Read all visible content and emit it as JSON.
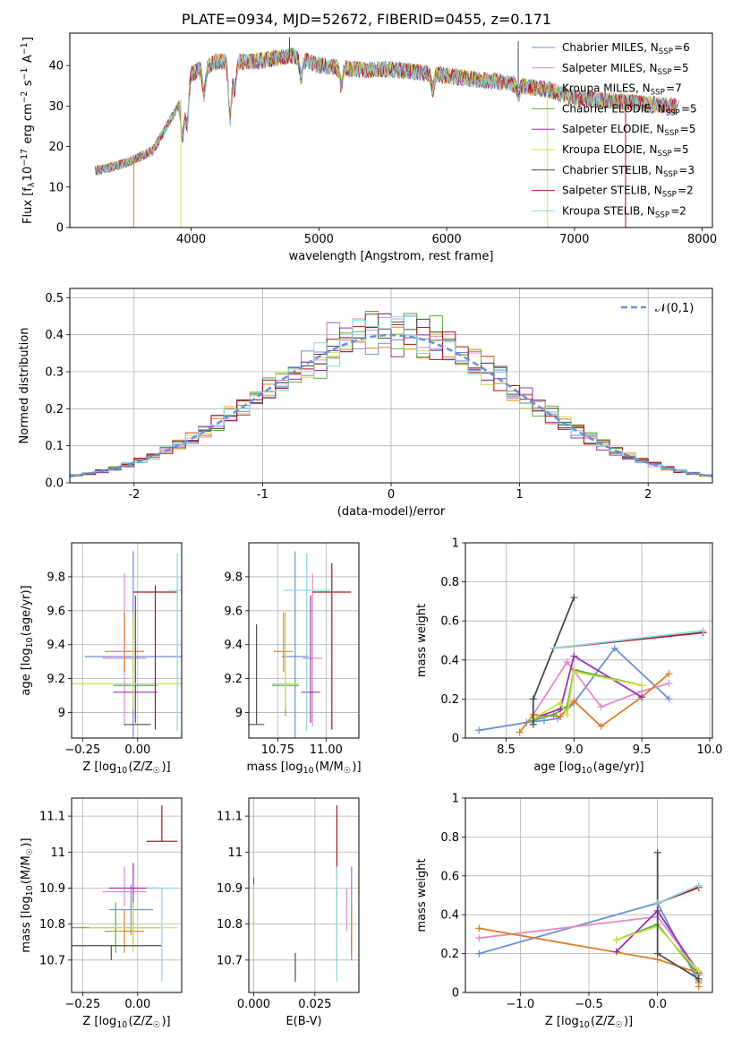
{
  "figure": {
    "title": "PLATE=0934, MJD=52672, FIBERID=0455, z=0.171"
  },
  "series_styles": [
    {
      "label": "Chabrier MILES, N<sub>SSP</sub>=6",
      "color": "#6a8fdc"
    },
    {
      "label": "Salpeter MILES, N<sub>SSP</sub>=5",
      "color": "#e389c8"
    },
    {
      "label": "Kroupa MILES, N<sub>SSP</sub>=7",
      "color": "#e07c22"
    },
    {
      "label": "Chabrier ELODIE, N<sub>SSP</sub>=5",
      "color": "#5cae3f"
    },
    {
      "label": "Salpeter ELODIE, N<sub>SSP</sub>=5",
      "color": "#9a30b4"
    },
    {
      "label": "Kroupa ELODIE, N<sub>SSP</sub>=5",
      "color": "#cde045"
    },
    {
      "label": "Chabrier STELIB, N<sub>SSP</sub>=3",
      "color": "#4c4c4c"
    },
    {
      "label": "Salpeter STELIB, N<sub>SSP</sub>=2",
      "color": "#b0141e"
    },
    {
      "label": "Kroupa STELIB, N<sub>SSP</sub>=2",
      "color": "#86d6e4"
    }
  ],
  "chart_data": [
    {
      "id": "spectrum",
      "type": "line",
      "xlabel": "wavelength [Angstrom, rest frame]",
      "ylabel": "Flux [f<sub>λ</sub>10<sup>−17</sup> erg cm<sup>−2</sup> s<sup>−1</sup> A<sup>−1</sup>]",
      "xlim": [
        3050,
        8080
      ],
      "ylim": [
        0,
        48
      ],
      "xticks": [
        4000,
        5000,
        6000,
        7000,
        8000
      ],
      "yticks": [
        0,
        10,
        20,
        30,
        40
      ],
      "grid": false,
      "legend": "right",
      "spectrum_continuum": [
        [
          3250,
          14
        ],
        [
          3500,
          16
        ],
        [
          3700,
          19
        ],
        [
          3900,
          30
        ],
        [
          4000,
          38
        ],
        [
          4200,
          41
        ],
        [
          4500,
          41
        ],
        [
          4800,
          42.5
        ],
        [
          5000,
          40
        ],
        [
          5300,
          39
        ],
        [
          5600,
          39
        ],
        [
          6000,
          37.5
        ],
        [
          6400,
          36
        ],
        [
          6800,
          34
        ],
        [
          7000,
          32
        ],
        [
          7400,
          31
        ],
        [
          7800,
          30
        ]
      ],
      "absorption_dips": [
        [
          3933,
          23
        ],
        [
          3968,
          25
        ],
        [
          4101,
          33
        ],
        [
          4304,
          27
        ],
        [
          4340,
          34
        ],
        [
          4861,
          37
        ],
        [
          5175,
          35
        ],
        [
          5890,
          34
        ],
        [
          6563,
          33
        ]
      ],
      "spikes": [
        [
          3550,
          0,
          "#e07c22"
        ],
        [
          3920,
          0,
          "#cde045"
        ],
        [
          6790,
          0,
          "#cde045"
        ],
        [
          7400,
          0,
          "#b0141e"
        ],
        [
          4770,
          47,
          "#4c4c4c"
        ],
        [
          6560,
          46,
          "#4c4c4c"
        ]
      ]
    },
    {
      "id": "residuals",
      "type": "histogram",
      "xlabel": "(data-model)/error",
      "ylabel": "Normed distribution",
      "xlim": [
        -2.5,
        2.5
      ],
      "ylim": [
        0,
        0.525
      ],
      "xticks": [
        -2,
        -1,
        0,
        1,
        2
      ],
      "yticks": [
        0.0,
        0.1,
        0.2,
        0.3,
        0.4,
        0.5
      ],
      "grid": true,
      "legend": "top-right",
      "legend_label": "𝒩(0,1)",
      "reference_curve": {
        "name": "𝒩(0,1)",
        "color": "#6a8fdc",
        "mean": 0,
        "sigma": 1
      }
    },
    {
      "id": "age_vs_Z",
      "type": "errorbar",
      "xlabel": "Z [log<sub>10</sub>(Z/Z<sub>☉</sub>)]",
      "ylabel": "age  [log<sub>10</sub>(age/yr)]",
      "xlim": [
        -0.3,
        0.2
      ],
      "ylim": [
        8.85,
        10.0
      ],
      "xticks": [
        -0.25,
        0.0
      ],
      "xticklabels": [
        "−0.25",
        "0.00"
      ],
      "yticks": [
        9.0,
        9.2,
        9.4,
        9.6,
        9.8
      ],
      "grid": true,
      "points": [
        {
          "x": -0.02,
          "y": 9.33,
          "xerr": 0.22,
          "yerr": [
            0.62,
            0.62
          ]
        },
        {
          "x": -0.06,
          "y": 9.32,
          "xerr": 0.1,
          "yerr": [
            0.4,
            0.5
          ]
        },
        {
          "x": -0.06,
          "y": 9.36,
          "xerr": 0.09,
          "yerr": [
            0.12,
            0.23
          ]
        },
        {
          "x": -0.01,
          "y": 9.16,
          "xerr": 0.1,
          "yerr": [
            0.18,
            0.43
          ]
        },
        {
          "x": -0.01,
          "y": 9.12,
          "xerr": 0.1,
          "yerr": [
            0.18,
            0.57
          ]
        },
        {
          "x": -0.02,
          "y": 9.17,
          "xerr": 0.3,
          "yerr": [
            0.15,
            0.42
          ]
        },
        {
          "x": 0.0,
          "y": 8.93,
          "xerr": 0.06,
          "yerr": [
            0.0,
            0.0
          ]
        },
        {
          "x": 0.08,
          "y": 9.71,
          "xerr": 0.1,
          "yerr": [
            0.81,
            0.04
          ]
        },
        {
          "x": 0.18,
          "y": 9.72,
          "xerr": 0.04,
          "yerr": [
            0.83,
            0.22
          ]
        }
      ]
    },
    {
      "id": "age_vs_mass",
      "type": "errorbar",
      "xlabel": "mass [log<sub>10</sub>(M/M<sub>☉</sub>)]",
      "ylabel": "",
      "xlim": [
        10.6,
        11.17
      ],
      "ylim": [
        8.85,
        10.0
      ],
      "xticks": [
        10.75,
        11.0
      ],
      "xticklabels": [
        "10.75",
        "11.00"
      ],
      "yticks": [
        9.0,
        9.2,
        9.4,
        9.6,
        9.8
      ],
      "grid": true,
      "points": [
        {
          "x": 10.84,
          "y": 9.33,
          "xerr": 0.07,
          "yerr": [
            0.62,
            0.62
          ]
        },
        {
          "x": 10.93,
          "y": 9.32,
          "xerr": 0.05,
          "yerr": [
            0.4,
            0.5
          ]
        },
        {
          "x": 10.78,
          "y": 9.36,
          "xerr": 0.05,
          "yerr": [
            0.12,
            0.23
          ]
        },
        {
          "x": 10.79,
          "y": 9.16,
          "xerr": 0.07,
          "yerr": [
            0.18,
            0.43
          ]
        },
        {
          "x": 10.92,
          "y": 9.12,
          "xerr": 0.05,
          "yerr": [
            0.18,
            0.57
          ]
        },
        {
          "x": 10.79,
          "y": 9.17,
          "xerr": 0.07,
          "yerr": [
            0.15,
            0.42
          ]
        },
        {
          "x": 10.64,
          "y": 8.93,
          "xerr": 0.04,
          "yerr": [
            0.0,
            0.59
          ]
        },
        {
          "x": 11.03,
          "y": 9.71,
          "xerr": 0.1,
          "yerr": [
            0.81,
            0.17
          ]
        },
        {
          "x": 10.9,
          "y": 9.72,
          "xerr": 0.12,
          "yerr": [
            0.83,
            0.22
          ]
        }
      ]
    },
    {
      "id": "weight_vs_age",
      "type": "line",
      "xlabel": "age  [log<sub>10</sub>(age/yr)]",
      "ylabel": "mass weight",
      "xlim": [
        8.2,
        10.02
      ],
      "ylim": [
        0,
        1.0
      ],
      "xticks": [
        8.5,
        9.0,
        9.5,
        10.0
      ],
      "xticklabels": [
        "8.5",
        "9.0",
        "9.5",
        "10.0"
      ],
      "yticks": [
        0.0,
        0.2,
        0.4,
        0.6,
        0.8,
        1.0
      ],
      "grid": true,
      "series": [
        {
          "x": [
            8.3,
            8.65,
            8.78,
            8.88,
            9.0,
            9.3,
            9.7
          ],
          "y": [
            0.04,
            0.08,
            0.09,
            0.1,
            0.18,
            0.46,
            0.2
          ]
        },
        {
          "x": [
            8.7,
            8.95,
            9.2,
            9.5,
            9.7
          ],
          "y": [
            0.12,
            0.39,
            0.16,
            0.24,
            0.28
          ]
        },
        {
          "x": [
            8.6,
            8.7,
            8.9,
            9.0,
            9.2,
            9.5,
            9.7
          ],
          "y": [
            0.03,
            0.12,
            0.11,
            0.19,
            0.06,
            0.21,
            0.33
          ]
        },
        {
          "x": [
            8.7,
            8.85,
            8.95,
            9.0,
            9.5
          ],
          "y": [
            0.09,
            0.12,
            0.16,
            0.35,
            0.27
          ]
        },
        {
          "x": [
            8.7,
            8.9,
            9.0,
            9.5
          ],
          "y": [
            0.1,
            0.15,
            0.42,
            0.21
          ]
        },
        {
          "x": [
            8.7,
            8.9,
            8.95,
            9.0,
            9.5
          ],
          "y": [
            0.1,
            0.18,
            0.12,
            0.34,
            0.27
          ]
        },
        {
          "x": [
            8.7,
            8.7,
            9.0
          ],
          "y": [
            0.07,
            0.2,
            0.72
          ]
        },
        {
          "x": [
            8.85,
            9.95
          ],
          "y": [
            0.46,
            0.54
          ]
        },
        {
          "x": [
            8.85,
            9.95
          ],
          "y": [
            0.46,
            0.55
          ]
        }
      ]
    },
    {
      "id": "mass_vs_Z",
      "type": "errorbar",
      "xlabel": "Z [log<sub>10</sub>(Z/Z<sub>☉</sub>)]",
      "ylabel": "mass [log<sub>10</sub>(M/M<sub>☉</sub>)]",
      "xlim": [
        -0.3,
        0.2
      ],
      "ylim": [
        10.61,
        11.15
      ],
      "xticks": [
        -0.25,
        0.0
      ],
      "xticklabels": [
        "−0.25",
        "0.00"
      ],
      "yticks": [
        10.7,
        10.8,
        10.9,
        11.0,
        11.1
      ],
      "grid": true,
      "points": [
        {
          "x": -0.03,
          "y": 10.84,
          "xerr": 0.1,
          "yerr": [
            0.07,
            0.07
          ]
        },
        {
          "x": -0.06,
          "y": 10.89,
          "xerr": 0.1,
          "yerr": [
            0.04,
            0.07
          ]
        },
        {
          "x": -0.06,
          "y": 10.78,
          "xerr": 0.09,
          "yerr": [
            0.06,
            0.06
          ]
        },
        {
          "x": -0.1,
          "y": 10.79,
          "xerr": 0.2,
          "yerr": [
            0.07,
            0.07
          ]
        },
        {
          "x": -0.02,
          "y": 10.9,
          "xerr": 0.11,
          "yerr": [
            0.15,
            0.07
          ]
        },
        {
          "x": -0.02,
          "y": 10.79,
          "xerr": 0.2,
          "yerr": [
            0.07,
            0.07
          ]
        },
        {
          "x": -0.12,
          "y": 10.74,
          "xerr": 0.23,
          "yerr": [
            0.04,
            0.0
          ]
        },
        {
          "x": 0.11,
          "y": 11.03,
          "xerr": 0.07,
          "yerr": [
            0.0,
            0.1
          ]
        },
        {
          "x": 0.11,
          "y": 10.9,
          "xerr": 0.07,
          "yerr": [
            0.26,
            0.0
          ]
        }
      ]
    },
    {
      "id": "mass_vs_ebv",
      "type": "errorbar",
      "xlabel": "E(B-V)",
      "ylabel": "",
      "xlim": [
        -0.002,
        0.043
      ],
      "ylim": [
        10.61,
        11.15
      ],
      "xticks": [
        0.0,
        0.025
      ],
      "xticklabels": [
        "0.000",
        "0.025"
      ],
      "yticks": [
        10.7,
        10.8,
        10.9,
        11.0,
        11.1
      ],
      "grid": true,
      "points": [
        {
          "x": 0.04,
          "y": 10.84,
          "xerr": 0.0,
          "yerr": [
            0.14,
            0.12
          ]
        },
        {
          "x": 0.038,
          "y": 10.84,
          "xerr": 0.0,
          "yerr": [
            0.06,
            0.06
          ]
        },
        {
          "x": 0.04,
          "y": 10.78,
          "xerr": 0.0,
          "yerr": [
            0.06,
            0.06
          ]
        },
        {
          "x": 0.034,
          "y": 10.8,
          "xerr": 0.0,
          "yerr": [
            0.1,
            0.1
          ]
        },
        {
          "x": 0.0,
          "y": 10.86,
          "xerr": 0.0,
          "yerr": [
            0.06,
            0.07
          ]
        },
        {
          "x": 0.0,
          "y": 10.79,
          "xerr": 0.0,
          "yerr": [
            0.1,
            0.12
          ]
        },
        {
          "x": 0.017,
          "y": 10.68,
          "xerr": 0.0,
          "yerr": [
            0.04,
            0.04
          ]
        },
        {
          "x": 0.034,
          "y": 11.03,
          "xerr": 0.0,
          "yerr": [
            0.1,
            0.1
          ]
        },
        {
          "x": 0.034,
          "y": 10.8,
          "xerr": 0.0,
          "yerr": [
            0.16,
            0.16
          ]
        }
      ]
    },
    {
      "id": "weight_vs_Z",
      "type": "line",
      "xlabel": "Z [log<sub>10</sub>(Z/Z<sub>☉</sub>)]",
      "ylabel": "mass weight",
      "xlim": [
        -1.4,
        0.4
      ],
      "ylim": [
        0,
        1.0
      ],
      "xticks": [
        -1.0,
        -0.5,
        0.0
      ],
      "xticklabels": [
        "−1.0",
        "−0.5",
        "0.0"
      ],
      "yticks": [
        0.0,
        0.2,
        0.4,
        0.6,
        0.8,
        1.0
      ],
      "grid": true,
      "series": [
        {
          "x": [
            -1.3,
            0.0,
            0.3
          ],
          "y": [
            0.2,
            0.46,
            0.05
          ]
        },
        {
          "x": [
            -1.3,
            0.0,
            0.3
          ],
          "y": [
            0.28,
            0.39,
            0.11
          ]
        },
        {
          "x": [
            -1.3,
            0.0,
            0.3,
            0.3,
            0.3
          ],
          "y": [
            0.33,
            0.17,
            0.1,
            0.06,
            0.03
          ]
        },
        {
          "x": [
            -0.3,
            0.0,
            0.3
          ],
          "y": [
            0.27,
            0.35,
            0.09
          ]
        },
        {
          "x": [
            -0.3,
            0.0,
            0.3
          ],
          "y": [
            0.21,
            0.42,
            0.1
          ]
        },
        {
          "x": [
            -0.3,
            0.0,
            0.3
          ],
          "y": [
            0.27,
            0.34,
            0.11
          ]
        },
        {
          "x": [
            0.0,
            0.0,
            0.3
          ],
          "y": [
            0.72,
            0.2,
            0.07
          ]
        },
        {
          "x": [
            0.0,
            0.3
          ],
          "y": [
            0.46,
            0.54
          ]
        },
        {
          "x": [
            0.0,
            0.3
          ],
          "y": [
            0.46,
            0.55
          ]
        }
      ]
    }
  ]
}
